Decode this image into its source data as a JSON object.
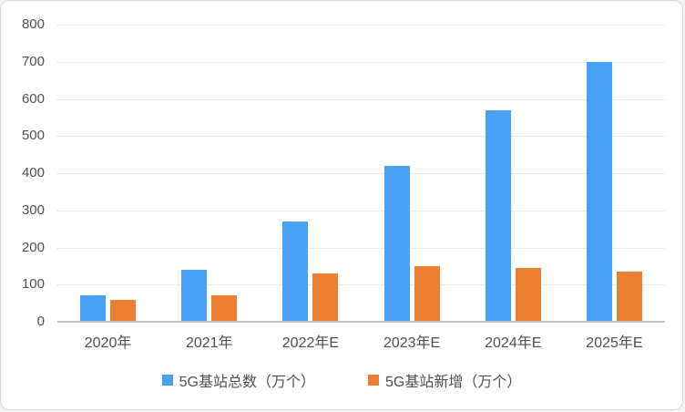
{
  "chart_data": {
    "type": "bar",
    "categories": [
      "2020年",
      "2021年",
      "2022年E",
      "2023年E",
      "2024年E",
      "2025年E"
    ],
    "series": [
      {
        "name": "5G基站总数（万个）",
        "color": "#48a1f5",
        "values": [
          70,
          140,
          270,
          420,
          570,
          700
        ]
      },
      {
        "name": "5G基站新增（万个）",
        "color": "#ed7d31",
        "values": [
          60,
          70,
          130,
          150,
          145,
          135
        ]
      }
    ],
    "title": "",
    "xlabel": "",
    "ylabel": "",
    "ylim": [
      0,
      800
    ],
    "ytick_interval": 100,
    "yticks": [
      "0",
      "100",
      "200",
      "300",
      "400",
      "500",
      "600",
      "700",
      "800"
    ],
    "grid": true,
    "legend_position": "bottom"
  },
  "style": {
    "grid_color": "#d9d9d9",
    "axis_line_color": "#c3c3c3",
    "text_color": "#4f4f4f",
    "background": "#ffffff",
    "border_color": "#d6d6d6"
  }
}
